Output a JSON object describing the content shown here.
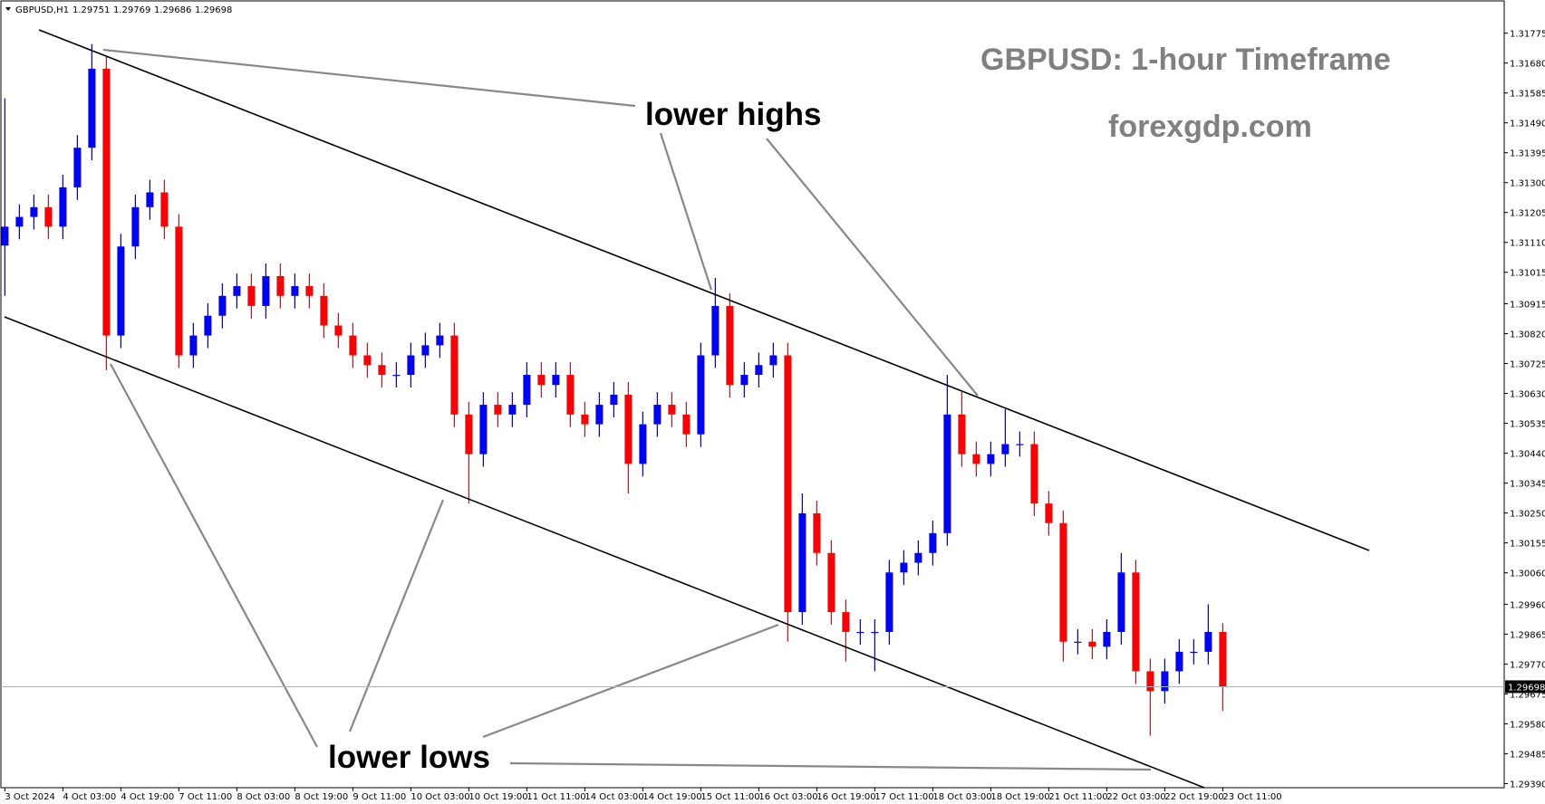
{
  "chart_data": {
    "type": "candlestick",
    "symbol": "GBPUSD,H1",
    "header_ohlc": [
      1.29751,
      1.29769,
      1.29686,
      1.29698
    ],
    "title": "GBPUSD: 1-hour Timeframe",
    "subtitle": "forexgdp.com",
    "annotations": [
      "lower highs",
      "lower lows"
    ],
    "up_color": "#0000ff",
    "down_color": "#ff0000",
    "x_labels": [
      "3 Oct 2024",
      "4 Oct 03:00",
      "4 Oct 19:00",
      "7 Oct 11:00",
      "8 Oct 03:00",
      "8 Oct 19:00",
      "9 Oct 11:00",
      "10 Oct 03:00",
      "10 Oct 19:00",
      "11 Oct 11:00",
      "14 Oct 03:00",
      "14 Oct 19:00",
      "15 Oct 11:00",
      "16 Oct 03:00",
      "16 Oct 19:00",
      "17 Oct 11:00",
      "18 Oct 03:00",
      "18 Oct 19:00",
      "21 Oct 11:00",
      "22 Oct 03:00",
      "22 Oct 19:00",
      "23 Oct 11:00"
    ],
    "open": [
      1.311,
      1.3116,
      1.31191,
      1.31222,
      1.3116,
      1.31285,
      1.31411,
      1.31662,
      1.30814,
      1.31097,
      1.31222,
      1.31269,
      1.3116,
      1.30751,
      1.30814,
      1.30877,
      1.3094,
      1.30971,
      1.30908,
      1.31003,
      1.3094,
      1.30971,
      1.3094,
      1.30846,
      1.30814,
      1.30751,
      1.3072,
      1.30689,
      1.30689,
      1.30751,
      1.30783,
      1.30814,
      1.30563,
      1.30437,
      1.30594,
      1.30563,
      1.30594,
      1.30689,
      1.30657,
      1.30689,
      1.30563,
      1.30532,
      1.30594,
      1.30626,
      1.30406,
      1.30532,
      1.30594,
      1.30563,
      1.305,
      1.30751,
      1.30908,
      1.30657,
      1.30689,
      1.3072,
      1.30751,
      1.29935,
      1.30249,
      1.30123,
      1.29935,
      1.29872,
      1.29872,
      1.29872,
      1.30061,
      1.30092,
      1.30123,
      1.30186,
      1.30563,
      1.30437,
      1.30406,
      1.30437,
      1.30469,
      1.30469,
      1.3028,
      1.30218,
      1.29841,
      1.29841,
      1.29825,
      1.29872,
      1.30061,
      1.29747,
      1.29684,
      1.29747,
      1.29809,
      1.29809,
      1.29872
    ],
    "high": [
      1.31568,
      1.31231,
      1.31262,
      1.31262,
      1.31325,
      1.31451,
      1.3174,
      1.31702,
      1.31137,
      1.31262,
      1.31309,
      1.31309,
      1.312,
      1.30854,
      1.30917,
      1.3098,
      1.31011,
      1.31011,
      1.31043,
      1.31043,
      1.31011,
      1.31011,
      1.3098,
      1.30886,
      1.30854,
      1.30791,
      1.3076,
      1.30729,
      1.30791,
      1.30823,
      1.30854,
      1.30854,
      1.30603,
      1.30634,
      1.30634,
      1.30634,
      1.30729,
      1.30729,
      1.30729,
      1.30729,
      1.30603,
      1.30634,
      1.30666,
      1.30666,
      1.30572,
      1.30634,
      1.30634,
      1.30603,
      1.30791,
      1.30997,
      1.30948,
      1.30729,
      1.3076,
      1.30791,
      1.30791,
      1.30312,
      1.30289,
      1.30163,
      1.29975,
      1.29912,
      1.29912,
      1.30101,
      1.30132,
      1.30163,
      1.30226,
      1.30689,
      1.30634,
      1.30477,
      1.30477,
      1.3058,
      1.30509,
      1.30509,
      1.3032,
      1.30258,
      1.29881,
      1.29881,
      1.29912,
      1.30123,
      1.30101,
      1.29787,
      1.29787,
      1.29849,
      1.29849,
      1.2996,
      1.299
    ],
    "low": [
      1.3094,
      1.3112,
      1.31151,
      1.3112,
      1.3112,
      1.31245,
      1.31371,
      1.30704,
      1.30774,
      1.31057,
      1.31182,
      1.3112,
      1.30711,
      1.30711,
      1.30774,
      1.30837,
      1.309,
      1.30868,
      1.30868,
      1.309,
      1.309,
      1.309,
      1.30806,
      1.30774,
      1.30711,
      1.3068,
      1.30649,
      1.30649,
      1.30649,
      1.30711,
      1.30743,
      1.30523,
      1.3028,
      1.30397,
      1.30523,
      1.30523,
      1.30554,
      1.30617,
      1.30617,
      1.30523,
      1.30492,
      1.30492,
      1.30554,
      1.30312,
      1.30366,
      1.30492,
      1.30523,
      1.3046,
      1.3046,
      1.30711,
      1.30617,
      1.30617,
      1.30649,
      1.3068,
      1.29841,
      1.29895,
      1.30083,
      1.29895,
      1.29778,
      1.29832,
      1.29747,
      1.29832,
      1.30021,
      1.30052,
      1.30083,
      1.30146,
      1.30397,
      1.30366,
      1.30366,
      1.30397,
      1.30429,
      1.3024,
      1.30178,
      1.29778,
      1.29801,
      1.29785,
      1.29785,
      1.29832,
      1.29707,
      1.29542,
      1.29644,
      1.29707,
      1.29769,
      1.29769,
      1.29621
    ],
    "close": [
      1.3116,
      1.31191,
      1.31222,
      1.3116,
      1.31285,
      1.31411,
      1.31662,
      1.30814,
      1.31097,
      1.31222,
      1.31269,
      1.3116,
      1.30751,
      1.30814,
      1.30877,
      1.3094,
      1.30971,
      1.30908,
      1.31003,
      1.3094,
      1.30971,
      1.3094,
      1.30846,
      1.30814,
      1.30751,
      1.3072,
      1.30689,
      1.30689,
      1.30751,
      1.30783,
      1.30814,
      1.30563,
      1.30437,
      1.30594,
      1.30563,
      1.30594,
      1.30689,
      1.30657,
      1.30689,
      1.30563,
      1.30532,
      1.30594,
      1.30626,
      1.30406,
      1.30532,
      1.30594,
      1.30563,
      1.305,
      1.30751,
      1.30908,
      1.30657,
      1.30689,
      1.3072,
      1.30751,
      1.29935,
      1.30249,
      1.30123,
      1.29935,
      1.29872,
      1.29872,
      1.29872,
      1.30061,
      1.30092,
      1.30123,
      1.30186,
      1.30563,
      1.30437,
      1.30406,
      1.30437,
      1.30469,
      1.30469,
      1.3028,
      1.30218,
      1.29841,
      1.29841,
      1.29825,
      1.29872,
      1.30061,
      1.29747,
      1.29684,
      1.29747,
      1.29809,
      1.29809,
      1.29872,
      1.29698
    ],
    "last_price": 1.29698,
    "ylim": [
      1.29377,
      1.31866
    ],
    "yticks": [
      1.31775,
      {
        "value": 1.3168,
        "label": "1.31680"
      },
      1.31585,
      {
        "value": 1.3149,
        "label": "1.31490"
      },
      1.31395,
      {
        "value": 1.313,
        "label": "1.31300"
      },
      1.31205,
      {
        "value": 1.3111,
        "label": "1.31110"
      },
      1.31015,
      1.30915,
      {
        "value": 1.3082,
        "label": "1.30820"
      },
      1.30725,
      {
        "value": 1.3063,
        "label": "1.30630"
      },
      1.30535,
      {
        "value": 1.3044,
        "label": "1.30440"
      },
      1.30345,
      {
        "value": 1.3025,
        "label": "1.30250"
      },
      1.30155,
      {
        "value": 1.3006,
        "label": "1.30060"
      },
      {
        "value": 1.2996,
        "label": "1.29960"
      },
      1.29865,
      {
        "value": 1.2977,
        "label": "1.29770"
      },
      1.29675,
      {
        "value": 1.2958,
        "label": "1.29580"
      },
      1.29485,
      {
        "value": 1.2939,
        "label": "1.29390"
      }
    ]
  }
}
